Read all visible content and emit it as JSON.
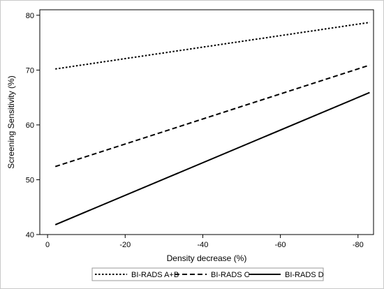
{
  "chart_data": {
    "type": "line",
    "title": "",
    "xlabel": "Density decrease (%)",
    "ylabel": "Screening Sensitivity (%)",
    "xlim": [
      2,
      -84
    ],
    "ylim": [
      40,
      81
    ],
    "x_ticks": [
      0,
      -20,
      -40,
      -60,
      -80
    ],
    "y_ticks": [
      40,
      50,
      60,
      70,
      80
    ],
    "grid": false,
    "legend_position": "bottom",
    "series": [
      {
        "name": "BI-RADS A+B",
        "style": "dotted",
        "color": "#000000",
        "x": [
          -2,
          -83
        ],
        "y": [
          70.2,
          78.7
        ]
      },
      {
        "name": "BI-RADS C",
        "style": "dashed",
        "color": "#000000",
        "x": [
          -2,
          -83
        ],
        "y": [
          52.4,
          70.9
        ]
      },
      {
        "name": "BI-RADS D",
        "style": "solid",
        "color": "#000000",
        "x": [
          -2,
          -83
        ],
        "y": [
          41.8,
          65.9
        ]
      }
    ]
  }
}
